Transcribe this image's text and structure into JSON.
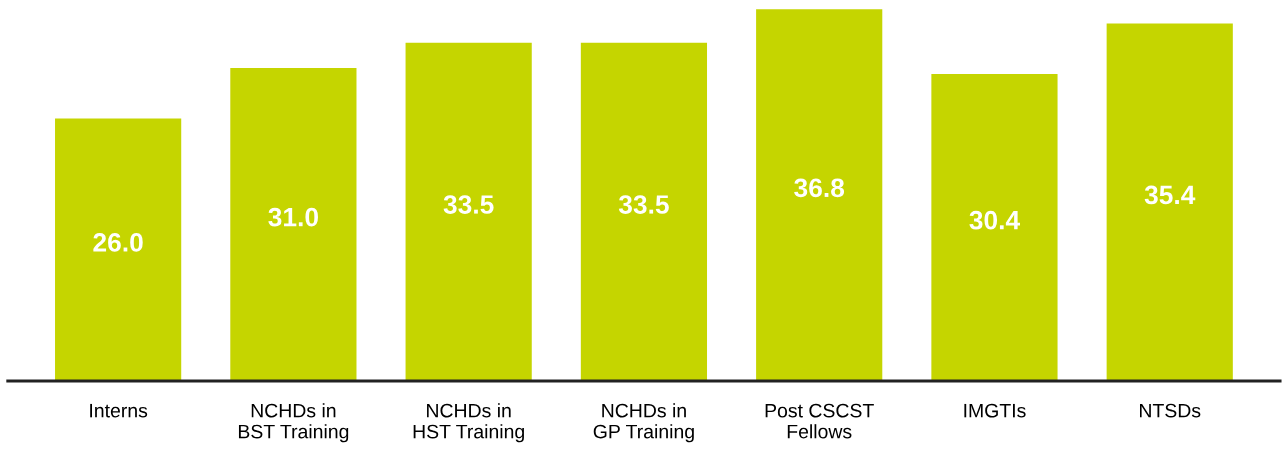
{
  "chart_data": {
    "type": "bar",
    "categories": [
      "Interns",
      "NCHDs in\nBST Training",
      "NCHDs in\nHST Training",
      "NCHDs in\nGP Training",
      "Post CSCST\nFellows",
      "IMGTIs",
      "NTSDs"
    ],
    "values": [
      26.0,
      31.0,
      33.5,
      33.5,
      36.8,
      30.4,
      35.4
    ],
    "value_labels": [
      "26.0",
      "31.0",
      "33.5",
      "33.5",
      "36.8",
      "30.4",
      "35.4"
    ],
    "color": "#c5d500",
    "tick_labels": "x",
    "grid": false,
    "legend": false
  }
}
